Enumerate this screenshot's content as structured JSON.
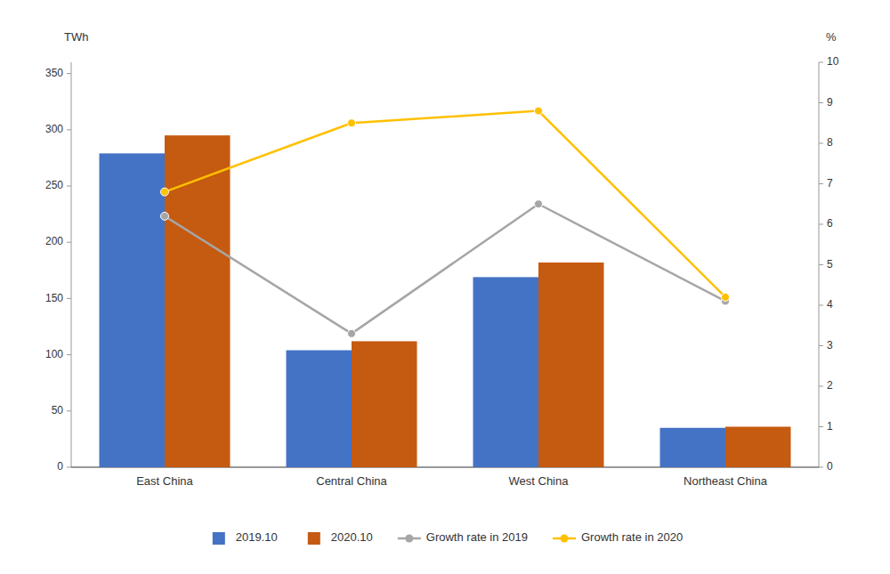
{
  "chart_data": {
    "type": "bar",
    "categories": [
      "East China",
      "Central China",
      "West China",
      "Northeast China"
    ],
    "series": [
      {
        "name": "2019.10",
        "type": "bar",
        "color": "#4472C4",
        "values": [
          279,
          104,
          169,
          35
        ]
      },
      {
        "name": "2020.10",
        "type": "bar",
        "color": "#C55A11",
        "values": [
          295,
          112,
          182,
          36
        ]
      },
      {
        "name": "Growth rate in 2019",
        "type": "line",
        "axis": "y2",
        "marker": "circle",
        "color": "#A6A6A6",
        "values": [
          6.2,
          3.3,
          6.5,
          4.1
        ]
      },
      {
        "name": "Growth rate in 2020",
        "type": "line",
        "axis": "y2",
        "marker": "circle",
        "color": "#FFC000",
        "values": [
          6.8,
          8.5,
          8.8,
          4.2
        ]
      }
    ],
    "y_label": "TWh",
    "y2_label": "%",
    "ylim": [
      0,
      360
    ],
    "yticks": [
      0,
      50,
      100,
      150,
      200,
      250,
      300,
      350
    ],
    "y2lim": [
      0,
      10
    ],
    "y2ticks": [
      0,
      1,
      2,
      3,
      4,
      5,
      6,
      7,
      8,
      9,
      10
    ],
    "grid": false,
    "legend": "bottom"
  }
}
